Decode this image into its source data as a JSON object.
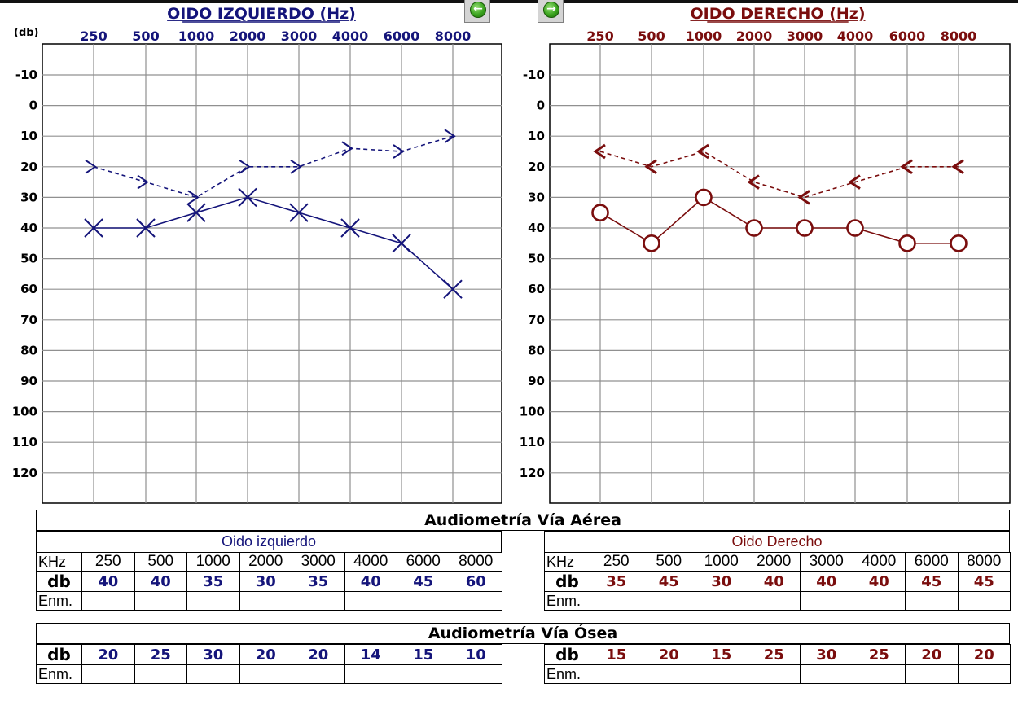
{
  "chart_data": [
    {
      "type": "line",
      "title": "OIDO IZQUIERDO (Hz)",
      "ylabel": "(db)",
      "categories": [
        "250",
        "500",
        "1000",
        "2000",
        "3000",
        "4000",
        "6000",
        "8000"
      ],
      "y_ticks": [
        "-10",
        "0",
        "10",
        "20",
        "30",
        "40",
        "50",
        "60",
        "70",
        "80",
        "90",
        "100",
        "110",
        "120"
      ],
      "ylim": [
        -20,
        130
      ],
      "y_inverted": true,
      "grid": true,
      "color": "#14147a",
      "series": [
        {
          "values": [
            40,
            40,
            35,
            30,
            35,
            40,
            45,
            60
          ],
          "marker": "X",
          "line": "solid"
        },
        {
          "values": [
            20,
            25,
            30,
            20,
            20,
            14,
            15,
            10
          ],
          "marker": ">",
          "line": "dashed"
        }
      ]
    },
    {
      "type": "line",
      "title": "OIDO DERECHO (Hz)",
      "categories": [
        "250",
        "500",
        "1000",
        "2000",
        "3000",
        "4000",
        "6000",
        "8000"
      ],
      "y_ticks": [
        "-10",
        "0",
        "10",
        "20",
        "30",
        "40",
        "50",
        "60",
        "70",
        "80",
        "90",
        "100",
        "110",
        "120"
      ],
      "ylim": [
        -20,
        130
      ],
      "y_inverted": true,
      "grid": true,
      "color": "#7a0d0d",
      "series": [
        {
          "values": [
            35,
            45,
            30,
            40,
            40,
            40,
            45,
            45
          ],
          "marker": "O",
          "line": "solid"
        },
        {
          "values": [
            15,
            20,
            15,
            25,
            30,
            25,
            20,
            20
          ],
          "marker": "<",
          "line": "dashed"
        }
      ]
    }
  ],
  "tables": {
    "aerea": {
      "title": "Audiometría Vía Aérea",
      "left_title": "Oido izquierdo",
      "right_title": "Oido Derecho",
      "khz_label": "KHz",
      "db_label": "db",
      "enm_label": "Enm.",
      "frequencies": [
        "250",
        "500",
        "1000",
        "2000",
        "3000",
        "4000",
        "6000",
        "8000"
      ],
      "left_values": [
        "40",
        "40",
        "35",
        "30",
        "35",
        "40",
        "45",
        "60"
      ],
      "right_values": [
        "35",
        "45",
        "30",
        "40",
        "40",
        "40",
        "45",
        "45"
      ]
    },
    "osea": {
      "title": "Audiometría Vía Ósea",
      "db_label": "db",
      "enm_label": "Enm.",
      "left_values": [
        "20",
        "25",
        "30",
        "20",
        "20",
        "14",
        "15",
        "10"
      ],
      "right_values": [
        "15",
        "20",
        "15",
        "25",
        "30",
        "25",
        "20",
        "20"
      ]
    }
  },
  "nav": {
    "prev_icon": "arrow-left-icon",
    "next_icon": "arrow-right-icon",
    "prev_glyph": "←",
    "next_glyph": "→",
    "accent": "#3aa31e"
  }
}
